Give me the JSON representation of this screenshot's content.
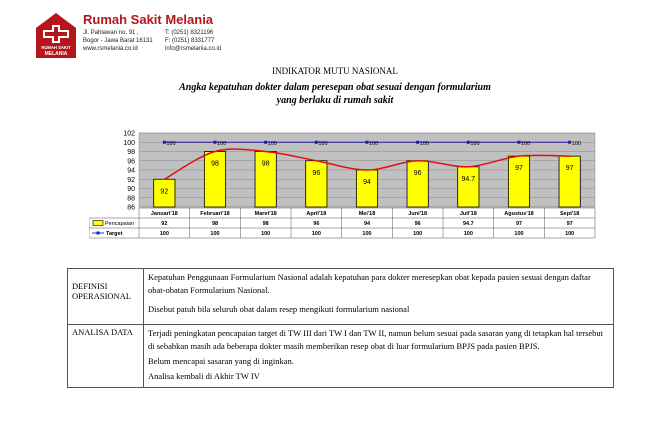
{
  "header": {
    "hospital_name": "Rumah Sakit Melania",
    "logo_text_top": "RUMAH SAKIT",
    "logo_text_bottom": "MELANIA",
    "address_line1": "Jl. Pahlawan no. 91 ,",
    "address_line2": "Bogor - Jawa Barat 16131",
    "website": "www.rsmelania.co.id",
    "phone_t": "T:   (0251) 8321196",
    "phone_f": "F:   (0251) 8331777",
    "email": "info@rsmelania.co.id",
    "brand_color": "#b5161b"
  },
  "doc": {
    "indicator": "INDIKATOR MUTU NASIONAL",
    "title_line1": "Angka kepatuhan dokter dalam peresepan obat sesuai dengan formularium",
    "title_line2": "yang berlaku di rumah sakit"
  },
  "chart_data": {
    "type": "bar",
    "categories": [
      "Januari'18",
      "Februari'18",
      "Maret'18",
      "April'18",
      "Mei'18",
      "Juni'18",
      "Juli'18",
      "Agustus'18",
      "Sept'18"
    ],
    "series": [
      {
        "name": "Pencapaian",
        "type": "bar",
        "values": [
          92,
          98,
          98,
          96,
          94,
          96,
          94.7,
          97,
          97
        ],
        "labels": [
          "92",
          "98",
          "98",
          "96",
          "94",
          "96",
          "94.7",
          "97",
          "97"
        ],
        "color": "#ffff00"
      },
      {
        "name": "Target",
        "type": "line",
        "values": [
          100,
          100,
          100,
          100,
          100,
          100,
          100,
          100,
          100
        ],
        "labels": [
          "100",
          "100",
          "100",
          "100",
          "100",
          "100",
          "100",
          "100",
          "100"
        ],
        "color": "#1a1aa6"
      }
    ],
    "trendline": {
      "color": "#e01010"
    },
    "ylim": [
      86,
      100
    ],
    "yticks": [
      "86",
      "88",
      "90",
      "92",
      "94",
      "96",
      "98",
      "100",
      "102"
    ],
    "grid": true,
    "legend": "table-below",
    "plot_background": "#c0c0c0"
  },
  "table": {
    "rows": [
      {
        "key_line1": "DEFINISI",
        "key_line2": "OPERASIONAL",
        "paras": [
          "Kepatuhan Penggunaan Formularium Nasional adalah kepatuhan para dokter meresepkan obat kepada pasien sesuai dengan daftar obat-obatan Formularium Nasional.",
          "Disebut patuh bila seluruh obat dalam resep mengikuti formularium nasional"
        ]
      },
      {
        "key_line1": "ANALISA DATA",
        "key_line2": "",
        "paras": [
          "Terjadi peningkatan pencapaian target di TW III dari TW I dan TW II, namun belum sesuai pada sasaran yang di tetapkan hal tersebut di sebabkan masih ada beberapa dokter masih memberikan resep obat di luar formularium BPJS pada pasien BPJS.",
          "Belum mencapai sasaran yang di inginkan.",
          "Analisa kembali di Akhir TW IV"
        ]
      }
    ]
  }
}
